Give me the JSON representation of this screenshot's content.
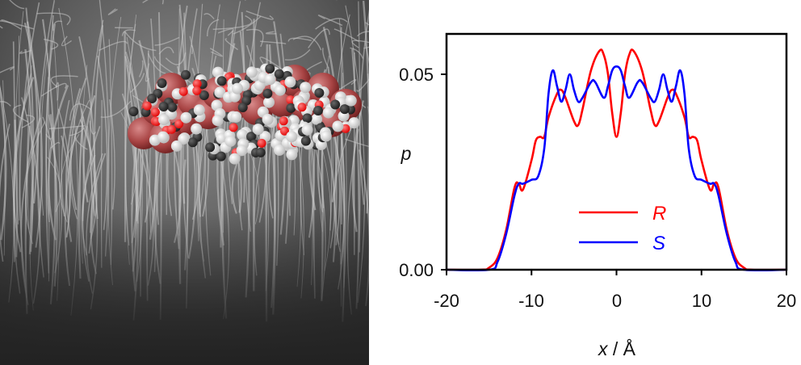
{
  "figure": {
    "left_panel": {
      "description": "SEM micrograph of a dense fibrous nanowire/nanotube forest with an overlaid space-filling molecular model (dark red large spheres, white hydrogens, dark grey carbons, red oxygens)"
    },
    "right_panel": {
      "y_ticks": [
        "0.05",
        "0.00"
      ],
      "x_ticks": [
        "-20",
        "-10",
        "0",
        "10",
        "20"
      ],
      "ylabel": "p",
      "xlabel_var": "x",
      "xlabel_unit": " / Å",
      "legend": [
        {
          "label": "R",
          "color": "#ff0000"
        },
        {
          "label": "S",
          "color": "#0000ff"
        }
      ]
    }
  },
  "chart_data": {
    "type": "line",
    "title": "",
    "xlabel": "x / Å",
    "ylabel": "p",
    "xlim": [
      -20,
      20
    ],
    "ylim": [
      0,
      0.062
    ],
    "x_ticks": [
      -20,
      -10,
      0,
      10,
      20
    ],
    "y_ticks": [
      0.0,
      0.05
    ],
    "grid": false,
    "legend_position": "center-lower (inside plot)",
    "series": [
      {
        "name": "R",
        "color": "#ff0000",
        "x": [
          -20,
          -16,
          -15,
          -14,
          -13,
          -12,
          -11.5,
          -11,
          -10,
          -9.5,
          -9,
          -8.5,
          -8,
          -7,
          -6.5,
          -6,
          -5,
          -4.5,
          -4,
          -3,
          -2,
          -1.5,
          -1,
          -0.5,
          0,
          0.5,
          1,
          1.5,
          2,
          3,
          4,
          4.5,
          5,
          6,
          6.5,
          7,
          8,
          8.5,
          9,
          9.5,
          10,
          11,
          11.5,
          12,
          13,
          14,
          15,
          16,
          20
        ],
        "values": [
          0,
          0,
          0.0005,
          0.003,
          0.01,
          0.021,
          0.022,
          0.0205,
          0.028,
          0.033,
          0.034,
          0.034,
          0.039,
          0.045,
          0.046,
          0.044,
          0.038,
          0.037,
          0.041,
          0.051,
          0.056,
          0.055,
          0.05,
          0.04,
          0.034,
          0.04,
          0.05,
          0.055,
          0.056,
          0.051,
          0.041,
          0.037,
          0.038,
          0.044,
          0.046,
          0.045,
          0.039,
          0.034,
          0.034,
          0.033,
          0.028,
          0.0205,
          0.022,
          0.021,
          0.01,
          0.003,
          0.0005,
          0,
          0
        ]
      },
      {
        "name": "S",
        "color": "#0000ff",
        "x": [
          -20,
          -15,
          -14,
          -13,
          -12,
          -11.5,
          -11,
          -10,
          -9.2,
          -8.5,
          -8,
          -7.5,
          -7,
          -6.5,
          -6,
          -5.5,
          -5,
          -4.5,
          -4,
          -3,
          -2.5,
          -1.5,
          -1,
          -0.5,
          0,
          0.5,
          1,
          1.5,
          2.5,
          3,
          4,
          4.5,
          5,
          5.5,
          6,
          6.5,
          7,
          7.5,
          8,
          8.5,
          9.2,
          10,
          11,
          11.5,
          12,
          13,
          14,
          15,
          20
        ],
        "values": [
          0,
          0,
          0.002,
          0.009,
          0.019,
          0.022,
          0.022,
          0.023,
          0.024,
          0.031,
          0.045,
          0.051,
          0.047,
          0.043,
          0.046,
          0.05,
          0.046,
          0.043,
          0.044,
          0.048,
          0.048,
          0.044,
          0.047,
          0.051,
          0.052,
          0.051,
          0.047,
          0.044,
          0.048,
          0.048,
          0.044,
          0.043,
          0.046,
          0.05,
          0.046,
          0.043,
          0.047,
          0.051,
          0.045,
          0.031,
          0.024,
          0.023,
          0.022,
          0.022,
          0.019,
          0.009,
          0.002,
          0,
          0
        ]
      }
    ]
  }
}
